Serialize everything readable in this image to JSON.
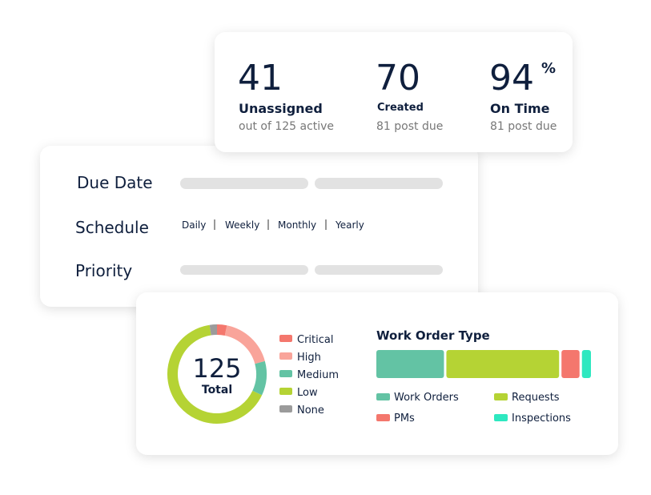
{
  "stats": [
    {
      "value": "41",
      "label": "Unassigned",
      "sub": "out of 125 active"
    },
    {
      "value": "70",
      "label": "Created",
      "sub": "81 post due"
    },
    {
      "value": "94",
      "suffix": "%",
      "label": "On Time",
      "sub": "81 post due"
    }
  ],
  "form": {
    "due_date": "Due Date",
    "schedule": {
      "label": "Schedule",
      "options": [
        "Daily",
        "Weekly",
        "Monthly",
        "Yearly"
      ]
    },
    "priority": "Priority"
  },
  "donut": {
    "total": "125",
    "total_label": "Total",
    "segments": [
      {
        "name": "Critical",
        "color": "#f4776d",
        "value": 4
      },
      {
        "name": "High",
        "color": "#f9a49a",
        "value": 22
      },
      {
        "name": "Medium",
        "color": "#63c3a4",
        "value": 14
      },
      {
        "name": "Low",
        "color": "#b5d334",
        "value": 82
      },
      {
        "name": "None",
        "color": "#9b9b9b",
        "value": 3
      }
    ]
  },
  "work_order_type": {
    "title": "Work Order Type",
    "segments": [
      {
        "name": "Work Orders",
        "color": "#63c3a4",
        "value": 30
      },
      {
        "name": "Requests",
        "color": "#b5d334",
        "value": 50
      },
      {
        "name": "PMs",
        "color": "#f4776d",
        "value": 8
      },
      {
        "name": "Inspections",
        "color": "#2ee8c0",
        "value": 4
      }
    ]
  }
}
